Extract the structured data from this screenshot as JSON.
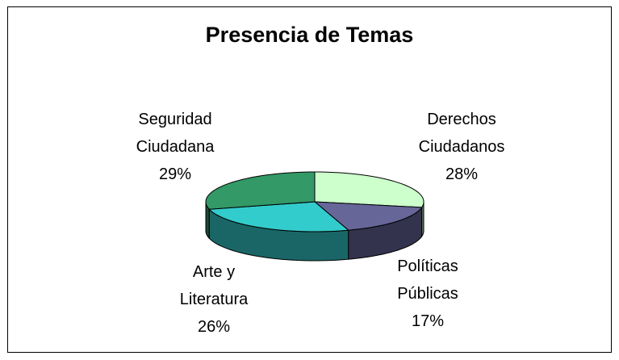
{
  "chart_data": {
    "type": "pie",
    "title": "Presencia de Temas",
    "categories": [
      "Derechos Ciudadanos",
      "Políticas Públicas",
      "Arte y Literatura",
      "Seguridad Ciudadana"
    ],
    "values": [
      28,
      17,
      26,
      29
    ],
    "value_labels": [
      "28%",
      "17%",
      "26%",
      "29%"
    ],
    "colors": [
      "#ccffcc",
      "#666699",
      "#33cccc",
      "#339966"
    ]
  }
}
